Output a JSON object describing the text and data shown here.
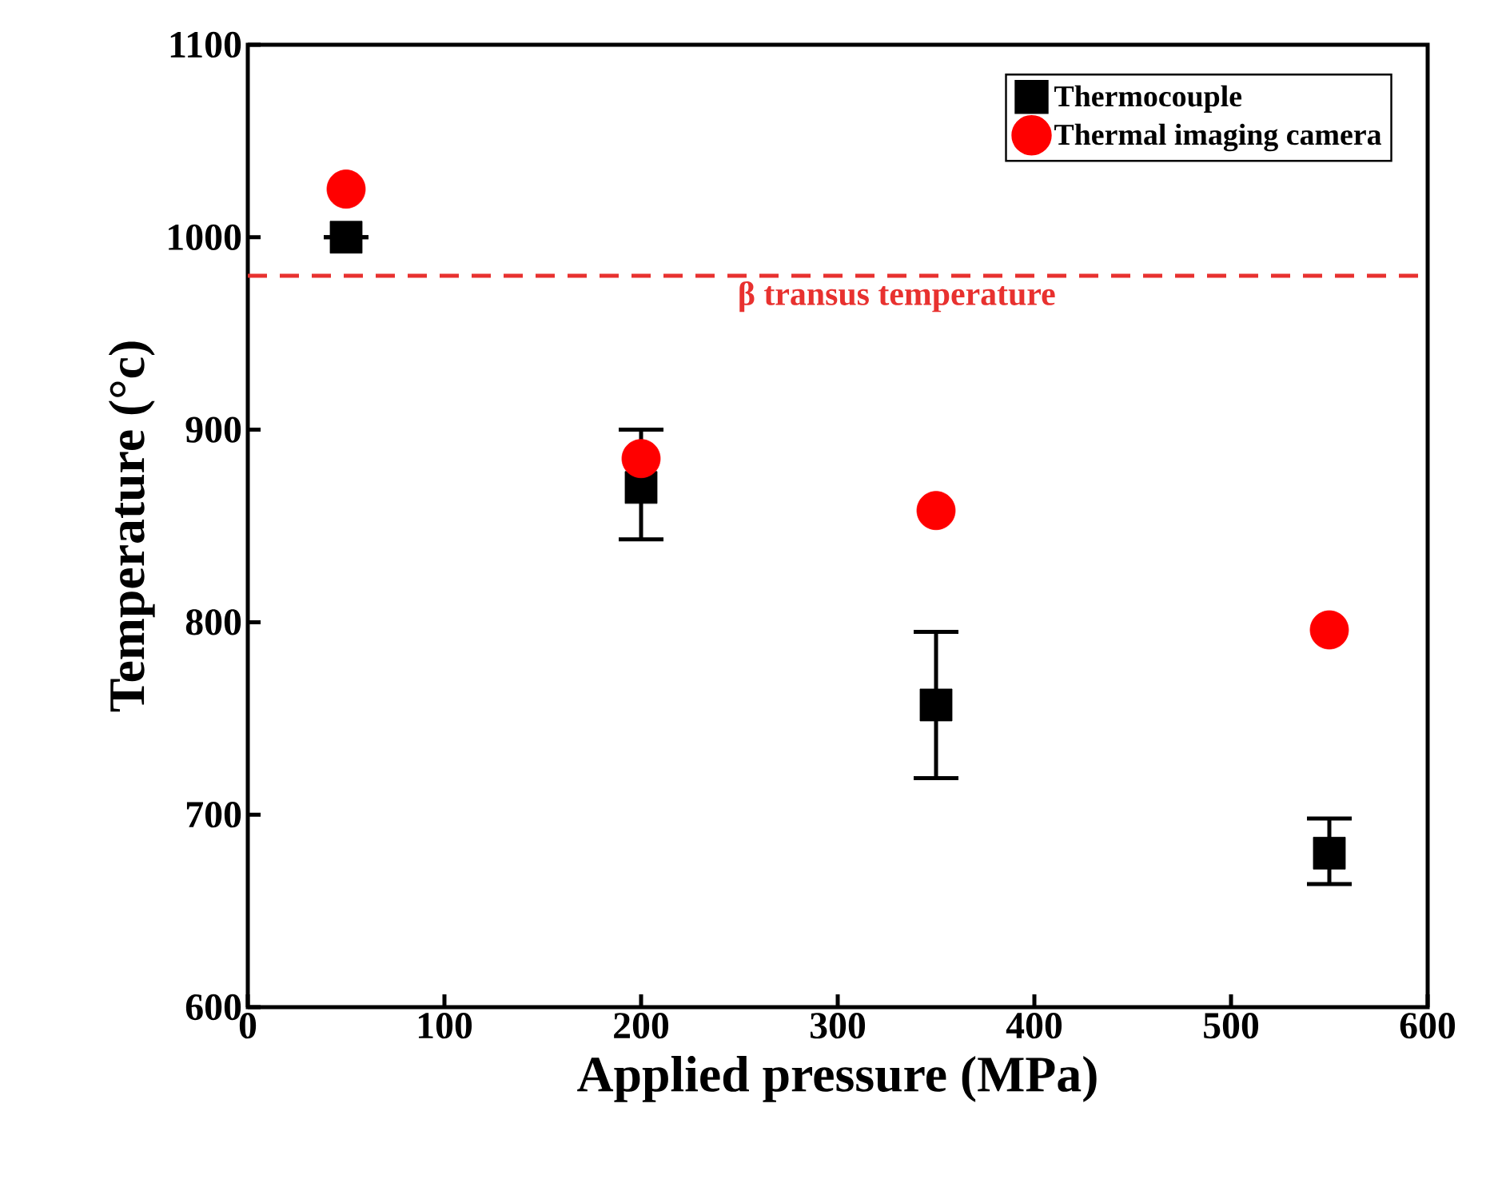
{
  "chart_data": {
    "type": "scatter",
    "xlabel": "Applied pressure (MPa)",
    "ylabel": "Temperature (°c)",
    "x": [
      50,
      200,
      350,
      550
    ],
    "series": [
      {
        "name": "Thermocouple",
        "color": "#000000",
        "marker": "square",
        "values": [
          1000,
          870,
          757,
          680
        ],
        "errors": [
          0,
          [
            843,
            900
          ],
          [
            719,
            795
          ],
          [
            664,
            698
          ]
        ]
      },
      {
        "name": "Thermal imaging camera",
        "color": "#ff0000",
        "marker": "circle",
        "values": [
          1025,
          885,
          858,
          796
        ]
      }
    ],
    "xlim": [
      0,
      600
    ],
    "ylim": [
      600,
      1100
    ],
    "xticks": [
      0,
      100,
      200,
      300,
      400,
      500,
      600
    ],
    "yticks": [
      600,
      700,
      800,
      900,
      1000,
      1100
    ],
    "ref_lines": [
      {
        "axis": "y",
        "value": 980,
        "label": "β transus temperature",
        "color": "#e8312f",
        "line_style": "dashed"
      }
    ],
    "legend": "top right",
    "grid": false
  }
}
